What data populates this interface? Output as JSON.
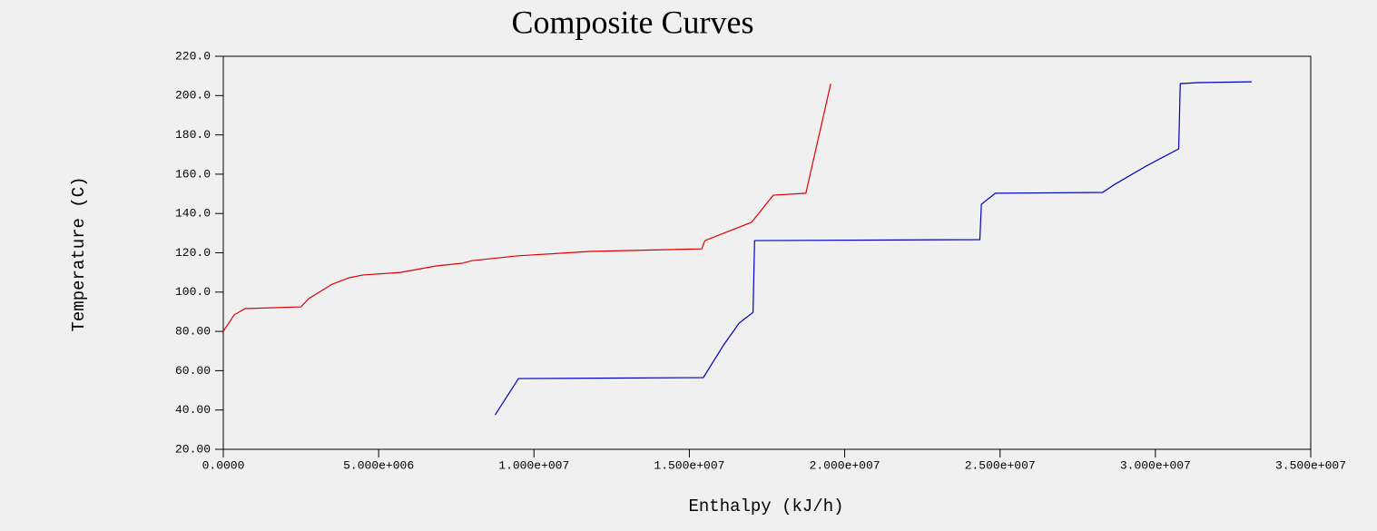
{
  "chart_data": {
    "type": "line",
    "title": "Composite Curves",
    "x_label": "Enthalpy (kJ/h)",
    "y_label": "Temperature (C)",
    "xlim": [
      0,
      35000000
    ],
    "ylim": [
      20,
      220
    ],
    "xticks": [
      {
        "value": 0,
        "label": "0.0000"
      },
      {
        "value": 5000000,
        "label": "5.000e+006"
      },
      {
        "value": 10000000,
        "label": "1.000e+007"
      },
      {
        "value": 15000000,
        "label": "1.500e+007"
      },
      {
        "value": 20000000,
        "label": "2.000e+007"
      },
      {
        "value": 25000000,
        "label": "2.500e+007"
      },
      {
        "value": 30000000,
        "label": "3.000e+007"
      },
      {
        "value": 35000000,
        "label": "3.500e+007"
      }
    ],
    "yticks": [
      {
        "value": 20,
        "label": "20.00"
      },
      {
        "value": 40,
        "label": "40.00"
      },
      {
        "value": 60,
        "label": "60.00"
      },
      {
        "value": 80,
        "label": "80.00"
      },
      {
        "value": 100,
        "label": "100.0"
      },
      {
        "value": 120,
        "label": "120.0"
      },
      {
        "value": 140,
        "label": "140.0"
      },
      {
        "value": 160,
        "label": "160.0"
      },
      {
        "value": 180,
        "label": "180.0"
      },
      {
        "value": 200,
        "label": "200.0"
      },
      {
        "value": 220,
        "label": "220.0"
      }
    ],
    "series": [
      {
        "color": "#e00000",
        "x": [
          0,
          350000,
          700000,
          2500000,
          2750000,
          3500000,
          4050000,
          4500000,
          5700000,
          6850000,
          7700000,
          8000000,
          9450000,
          11800000,
          15400000,
          15500000,
          17000000,
          17700000,
          18750000,
          19550000
        ],
        "values": [
          80,
          88.4,
          91.6,
          92.5,
          96.7,
          104,
          107.3,
          108.7,
          110,
          113.3,
          114.7,
          116,
          118.4,
          120.7,
          122,
          126.2,
          135.5,
          149.3,
          150.3,
          206
        ]
      },
      {
        "color": "#0000c0",
        "x": [
          8750000,
          9500000,
          15450000,
          16100000,
          16600000,
          17050000,
          17100000,
          24350000,
          24400000,
          24850000,
          28300000,
          28700000,
          29700000,
          30750000,
          30800000,
          31400000,
          33100000
        ],
        "values": [
          37.5,
          56,
          56.5,
          73,
          84.2,
          89.7,
          126.2,
          126.7,
          144.7,
          150.3,
          150.7,
          154.9,
          164.1,
          172.9,
          206.1,
          206.6,
          207
        ]
      }
    ]
  }
}
